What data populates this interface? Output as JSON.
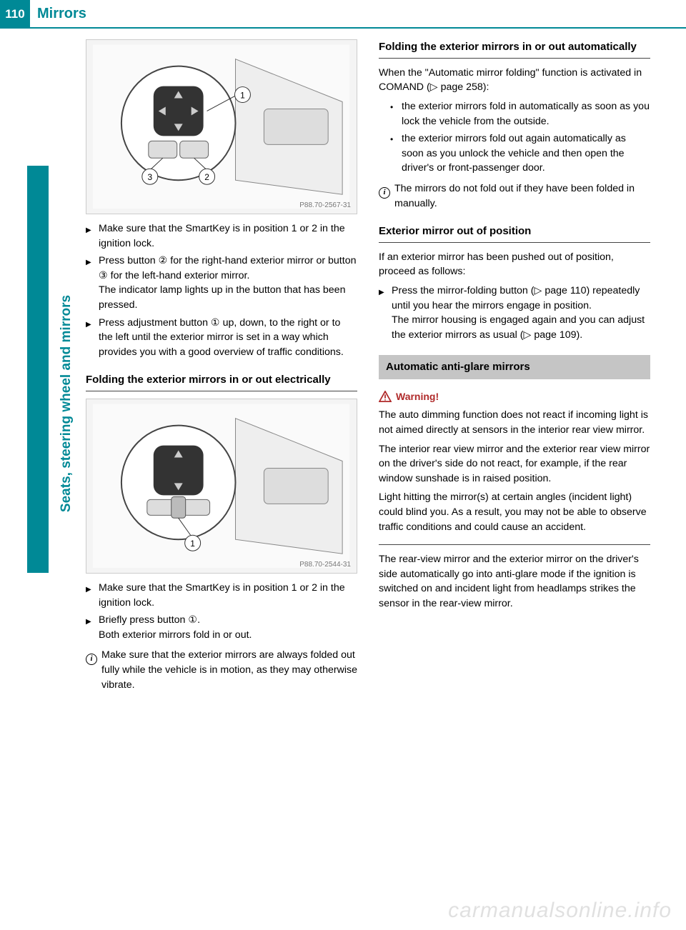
{
  "header": {
    "page_number": "110",
    "title": "Mirrors"
  },
  "side_label": "Seats, steering wheel and mirrors",
  "colors": {
    "brand": "#008996",
    "section_bar_bg": "#c5c5c5",
    "warning_red": "#b02a2a",
    "watermark": "rgba(0,0,0,0.12)"
  },
  "figures": {
    "fig1": {
      "code": "P88.70-2567-31"
    },
    "fig2": {
      "code": "P88.70-2544-31"
    }
  },
  "left": {
    "steps1": [
      "Make sure that the SmartKey is in position 1 or 2 in the ignition lock.",
      "Press button ② for the right-hand exterior mirror or button ③ for the left-hand exterior mirror.\nThe indicator lamp lights up in the button that has been pressed.",
      "Press adjustment button ① up, down, to the right or to the left until the exterior mirror is set in a way which provides you with a good overview of traffic conditions."
    ],
    "subhead1": "Folding the exterior mirrors in or out electrically",
    "steps2": [
      "Make sure that the SmartKey is in position 1 or 2 in the ignition lock.",
      "Briefly press button ①.\nBoth exterior mirrors fold in or out."
    ],
    "info1": "Make sure that the exterior mirrors are always folded out fully while the vehicle is in motion, as they may otherwise vibrate."
  },
  "right": {
    "subhead1": "Folding the exterior mirrors in or out automatically",
    "intro1": "When the \"Automatic mirror folding\" function is activated in COMAND (▷ page 258):",
    "bullets1": [
      "the exterior mirrors fold in automatically as soon as you lock the vehicle from the outside.",
      "the exterior mirrors fold out again automatically as soon as you unlock the vehicle and then open the driver's or front-passenger door."
    ],
    "info1": "The mirrors do not fold out if they have been folded in manually.",
    "subhead2": "Exterior mirror out of position",
    "intro2": "If an exterior mirror has been pushed out of position, proceed as follows:",
    "step2": "Press the mirror-folding button (▷ page 110) repeatedly until you hear the mirrors engage in position.\nThe mirror housing is engaged again and you can adjust the exterior mirrors as usual (▷ page 109).",
    "section_bar": "Automatic anti-glare mirrors",
    "warning_title": "Warning!",
    "warning_paras": [
      "The auto dimming function does not react if incoming light is not aimed directly at sensors in the interior rear view mirror.",
      "The interior rear view mirror and the exterior rear view mirror on the driver's side do not react, for example, if the rear window sunshade is in raised position.",
      "Light hitting the mirror(s) at certain angles (incident light) could blind you. As a result, you may not be able to observe traffic conditions and could cause an accident."
    ],
    "closing": "The rear-view mirror and the exterior mirror on the driver's side automatically go into anti-glare mode if the ignition is switched on and incident light from headlamps strikes the sensor in the rear-view mirror."
  },
  "watermark": "carmanualsonline.info"
}
